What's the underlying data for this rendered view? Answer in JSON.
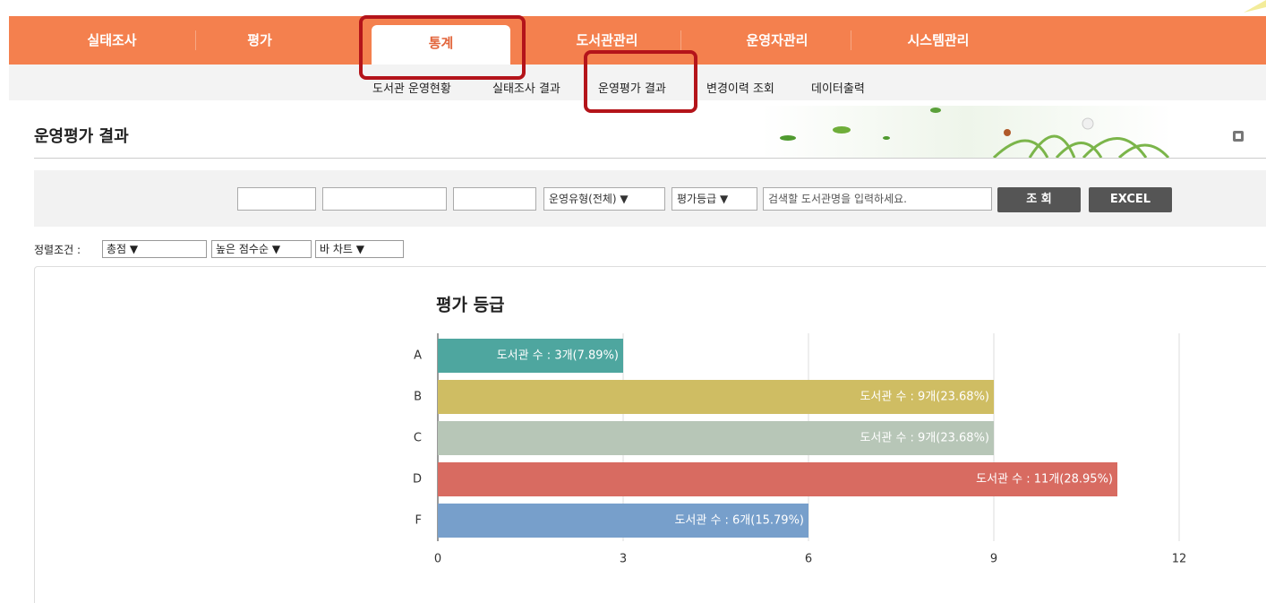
{
  "nav": {
    "items": [
      "실태조사",
      "평가",
      "통계",
      "도서관관리",
      "운영자관리",
      "시스템관리"
    ]
  },
  "subnav": {
    "items": [
      "도서관 운영현황",
      "실태조사 결과",
      "운영평가 결과",
      "변경이력 조회",
      "데이터출력"
    ]
  },
  "page": {
    "title": "운영평가 결과"
  },
  "filters": {
    "selects": [
      "운영유형(전체) ▼",
      "평가등급 ▼"
    ],
    "search_placeholder": "검색할 도서관명을 입력하세요.",
    "buttons": [
      "조 회",
      "EXCEL"
    ]
  },
  "sort": {
    "label": "정렬조건 :",
    "selects": [
      "총점 ▼",
      "높은 점수순 ▼",
      "바 차트 ▼"
    ]
  },
  "chart_data": {
    "type": "hbar",
    "title": "평가 등급",
    "categories": [
      "A",
      "B",
      "C",
      "D",
      "F"
    ],
    "values": [
      3,
      9,
      9,
      11,
      6
    ],
    "value_labels": [
      "도서관 수 : 3개(7.89%)",
      "도서관 수 : 9개(23.68%)",
      "도서관 수 : 9개(23.68%)",
      "도서관 수 : 11개(28.95%)",
      "도서관 수 : 6개(15.79%)"
    ],
    "colors": [
      "#4ea69f",
      "#cfbd63",
      "#b7c6b7",
      "#d86b61",
      "#779fcb"
    ],
    "xlim": [
      0,
      12
    ],
    "xticks": [
      0,
      3,
      6,
      9,
      12
    ],
    "grid": true
  }
}
